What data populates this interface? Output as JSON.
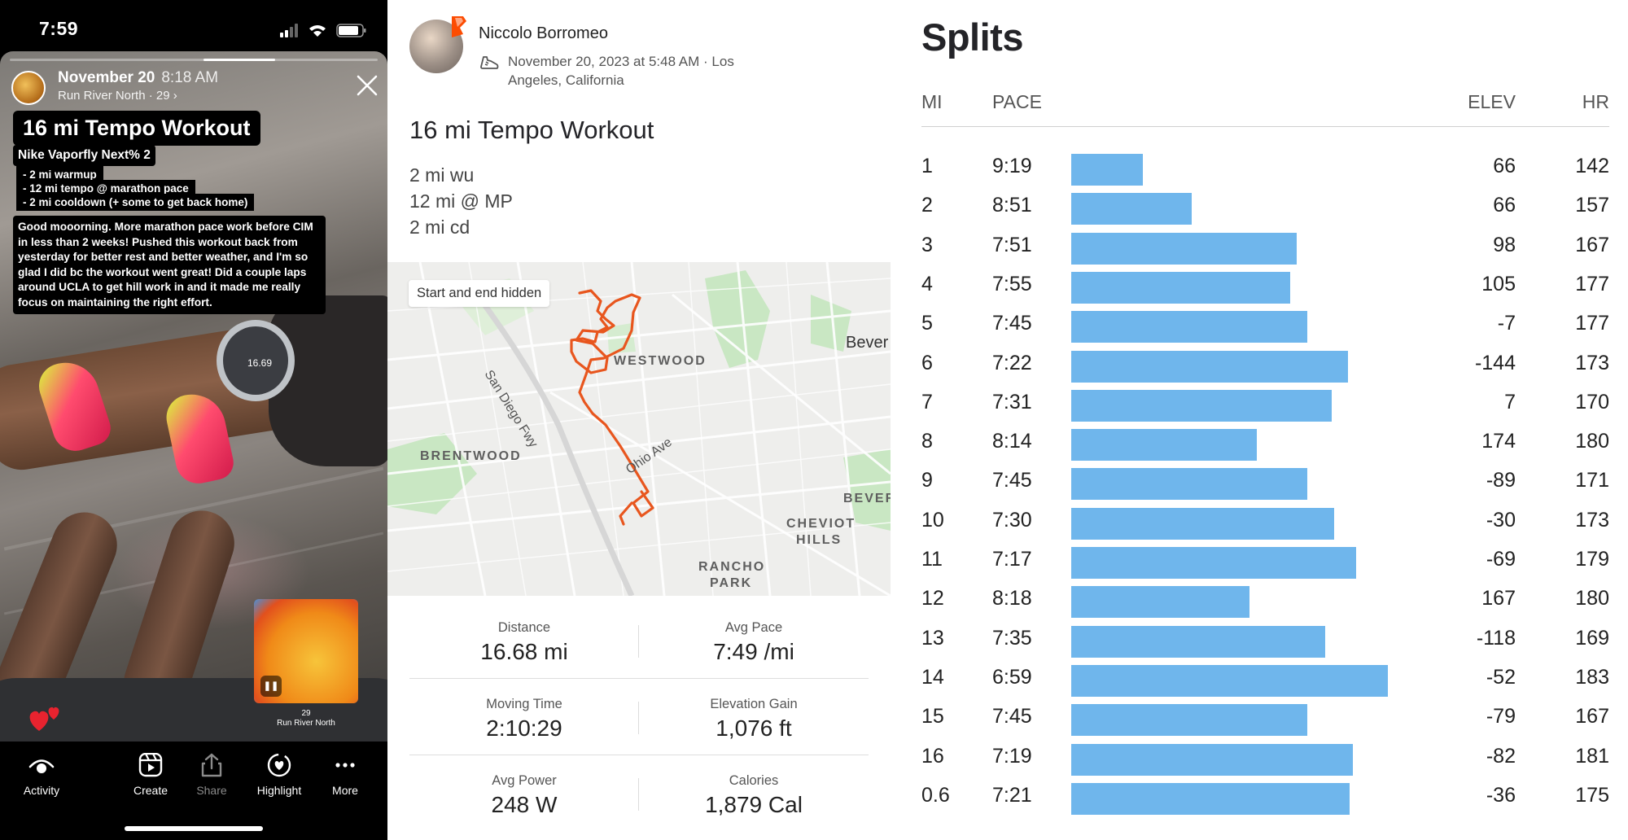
{
  "story": {
    "status_time": "7:59",
    "date": "November 20",
    "time": "8:18 AM",
    "subtitle": "Run River North · 29 ›",
    "title": "16 mi Tempo Workout",
    "shoe": "Nike Vaporfly Next% 2",
    "plan": [
      "- 2 mi warmup",
      "- 12 mi tempo @ marathon pace",
      "- 2 mi cooldown (+ some to get back home)"
    ],
    "body": "Good mooorning. More marathon pace work before CIM in less than 2 weeks! Pushed this workout back from yesterday for better rest and better weather, and I'm so glad I did bc the workout went great! Did a couple laps around UCLA to get hill work in and it made me really focus on maintaining the right effort.",
    "watch_value": "16.69",
    "music_number": "29",
    "music_artist": "Run River North",
    "nav": [
      {
        "label": "Activity",
        "icon": "eye-icon"
      },
      {
        "label": "Create",
        "icon": "reel-icon"
      },
      {
        "label": "Share",
        "icon": "share-icon"
      },
      {
        "label": "Highlight",
        "icon": "highlight-icon"
      },
      {
        "label": "More",
        "icon": "more-icon"
      }
    ]
  },
  "activity": {
    "athlete": "Niccolo Borromeo",
    "meta": "November 20, 2023 at 5:48 AM · Los Angeles, California",
    "title": "16 mi Tempo Workout",
    "description": [
      "2 mi wu",
      "12 mi @ MP",
      "2 mi cd"
    ],
    "map": {
      "chip": "Start and end hidden",
      "labels": {
        "westwood": "WESTWOOD",
        "brentwood": "BRENTWOOD",
        "cheviot": "CHEVIOT",
        "hills": "HILLS",
        "rancho": "RANCHO",
        "park": "PARK",
        "beverly": "Bever",
        "beverly2": "BEVER"
      },
      "roads": {
        "fwy": "San Diego Fwy",
        "ohio": "Ohio Ave"
      }
    },
    "stats": [
      {
        "label": "Distance",
        "value": "16.68 mi"
      },
      {
        "label": "Avg Pace",
        "value": "7:49 /mi"
      },
      {
        "label": "Moving Time",
        "value": "2:10:29"
      },
      {
        "label": "Elevation Gain",
        "value": "1,076 ft"
      },
      {
        "label": "Avg Power",
        "value": "248 W"
      },
      {
        "label": "Calories",
        "value": "1,879 Cal"
      }
    ]
  },
  "splits": {
    "title": "Splits",
    "headers": {
      "mi": "MI",
      "pace": "PACE",
      "elev": "ELEV",
      "hr": "HR"
    },
    "bar_color": "#6fb6ec",
    "rows": [
      {
        "mi": "1",
        "pace": "9:19",
        "pace_sec": 559,
        "elev": "66",
        "hr": "142"
      },
      {
        "mi": "2",
        "pace": "8:51",
        "pace_sec": 531,
        "elev": "66",
        "hr": "157"
      },
      {
        "mi": "3",
        "pace": "7:51",
        "pace_sec": 471,
        "elev": "98",
        "hr": "167"
      },
      {
        "mi": "4",
        "pace": "7:55",
        "pace_sec": 475,
        "elev": "105",
        "hr": "177"
      },
      {
        "mi": "5",
        "pace": "7:45",
        "pace_sec": 465,
        "elev": "-7",
        "hr": "177"
      },
      {
        "mi": "6",
        "pace": "7:22",
        "pace_sec": 442,
        "elev": "-144",
        "hr": "173"
      },
      {
        "mi": "7",
        "pace": "7:31",
        "pace_sec": 451,
        "elev": "7",
        "hr": "170"
      },
      {
        "mi": "8",
        "pace": "8:14",
        "pace_sec": 494,
        "elev": "174",
        "hr": "180"
      },
      {
        "mi": "9",
        "pace": "7:45",
        "pace_sec": 465,
        "elev": "-89",
        "hr": "171"
      },
      {
        "mi": "10",
        "pace": "7:30",
        "pace_sec": 450,
        "elev": "-30",
        "hr": "173"
      },
      {
        "mi": "11",
        "pace": "7:17",
        "pace_sec": 437,
        "elev": "-69",
        "hr": "179"
      },
      {
        "mi": "12",
        "pace": "8:18",
        "pace_sec": 498,
        "elev": "167",
        "hr": "180"
      },
      {
        "mi": "13",
        "pace": "7:35",
        "pace_sec": 455,
        "elev": "-118",
        "hr": "169"
      },
      {
        "mi": "14",
        "pace": "6:59",
        "pace_sec": 419,
        "elev": "-52",
        "hr": "183"
      },
      {
        "mi": "15",
        "pace": "7:45",
        "pace_sec": 465,
        "elev": "-79",
        "hr": "167"
      },
      {
        "mi": "16",
        "pace": "7:19",
        "pace_sec": 439,
        "elev": "-82",
        "hr": "181"
      },
      {
        "mi": "0.6",
        "pace": "7:21",
        "pace_sec": 441,
        "elev": "-36",
        "hr": "175"
      }
    ]
  }
}
